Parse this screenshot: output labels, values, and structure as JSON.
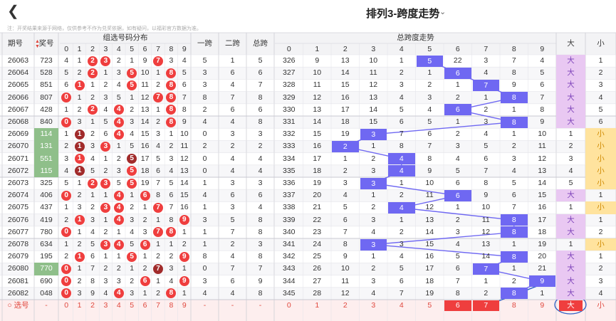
{
  "page": {
    "back_icon": "chevron-left",
    "title": "排列3-跨度走势",
    "dropdown_icon": "chevron-down",
    "notice": "注：开奖结果来源于网络，仅供参考不作为兑奖依据，如有疑问，以福彩官方数据为准。"
  },
  "header": {
    "issue": "期号",
    "prize": "奖号",
    "group_title": "组选号码分布",
    "digits": [
      "0",
      "1",
      "2",
      "3",
      "4",
      "5",
      "6",
      "7",
      "8",
      "9"
    ],
    "span1": "一跨",
    "span2": "二跨",
    "total_span": "总跨",
    "trend_title": "总跨度走势",
    "trend_cols": [
      "0",
      "1",
      "2",
      "3",
      "4",
      "5",
      "6",
      "7",
      "8",
      "9"
    ],
    "big": "大",
    "small": "小"
  },
  "colors": {
    "red_ball": "#ef3e3e",
    "dark_ball": "#a12b2b",
    "line": "#6f68f2",
    "hit_big": "#e9c8f2",
    "hit_small": "#ffe39e",
    "pair_row": "#8fbf8a"
  },
  "rows": [
    {
      "issue": "26063",
      "prize": "723",
      "dist": [
        "4",
        "1",
        "2",
        "3",
        "2",
        "1",
        "9",
        "7",
        "3",
        "4"
      ],
      "dist_type": [
        "",
        "",
        "r",
        "r",
        "",
        "",
        "",
        "r",
        "",
        ""
      ],
      "span1": "5",
      "span2": "1",
      "total": "5",
      "trend": [
        "326",
        "9",
        "13",
        "10",
        "1",
        "5",
        "22",
        "3",
        "7",
        "4"
      ],
      "big": "大",
      "small": "1",
      "hit_side": "big",
      "pair": false
    },
    {
      "issue": "26064",
      "prize": "528",
      "dist": [
        "5",
        "2",
        "2",
        "1",
        "3",
        "5",
        "10",
        "1",
        "8",
        "5"
      ],
      "dist_type": [
        "",
        "",
        "r",
        "",
        "",
        "r",
        "",
        "",
        "r",
        ""
      ],
      "span1": "3",
      "span2": "6",
      "total": "6",
      "trend": [
        "327",
        "10",
        "14",
        "11",
        "2",
        "1",
        "6",
        "4",
        "8",
        "5"
      ],
      "big": "大",
      "small": "2",
      "hit_side": "big",
      "pair": false
    },
    {
      "issue": "26065",
      "prize": "851",
      "dist": [
        "6",
        "1",
        "1",
        "2",
        "4",
        "5",
        "11",
        "2",
        "8",
        "6"
      ],
      "dist_type": [
        "",
        "r",
        "",
        "",
        "",
        "r",
        "",
        "",
        "r",
        ""
      ],
      "span1": "3",
      "span2": "4",
      "total": "7",
      "trend": [
        "328",
        "11",
        "15",
        "12",
        "3",
        "2",
        "1",
        "7",
        "9",
        "6"
      ],
      "big": "大",
      "small": "3",
      "hit_side": "big",
      "pair": false
    },
    {
      "issue": "26066",
      "prize": "807",
      "dist": [
        "0",
        "1",
        "2",
        "3",
        "5",
        "1",
        "12",
        "7",
        "8",
        "7"
      ],
      "dist_type": [
        "r",
        "",
        "",
        "",
        "",
        "",
        "",
        "r",
        "r",
        ""
      ],
      "span1": "8",
      "span2": "7",
      "total": "8",
      "trend": [
        "329",
        "12",
        "16",
        "13",
        "4",
        "3",
        "2",
        "1",
        "8",
        "7"
      ],
      "big": "大",
      "small": "4",
      "hit_side": "big",
      "pair": false
    },
    {
      "issue": "26067",
      "prize": "428",
      "dist": [
        "1",
        "2",
        "2",
        "4",
        "4",
        "2",
        "13",
        "1",
        "8",
        "8"
      ],
      "dist_type": [
        "",
        "",
        "r",
        "",
        "r",
        "",
        "",
        "",
        "r",
        ""
      ],
      "span1": "2",
      "span2": "6",
      "total": "6",
      "trend": [
        "330",
        "13",
        "17",
        "14",
        "5",
        "4",
        "6",
        "2",
        "1",
        "8"
      ],
      "big": "大",
      "small": "5",
      "hit_side": "big",
      "pair": false
    },
    {
      "issue": "26068",
      "prize": "840",
      "dist": [
        "0",
        "3",
        "1",
        "5",
        "4",
        "3",
        "14",
        "2",
        "8",
        "9"
      ],
      "dist_type": [
        "r",
        "",
        "",
        "",
        "r",
        "",
        "",
        "",
        "r",
        ""
      ],
      "span1": "4",
      "span2": "4",
      "total": "8",
      "trend": [
        "331",
        "14",
        "18",
        "15",
        "6",
        "5",
        "1",
        "3",
        "8",
        "9"
      ],
      "big": "大",
      "small": "6",
      "hit_side": "big",
      "pair": false
    },
    {
      "issue": "26069",
      "prize": "114",
      "dist": [
        "1",
        "1",
        "2",
        "6",
        "4",
        "4",
        "15",
        "3",
        "1",
        "10"
      ],
      "dist_type": [
        "",
        "d",
        "",
        "",
        "r",
        "",
        "",
        "",
        "",
        ""
      ],
      "span1": "0",
      "span2": "3",
      "total": "3",
      "trend": [
        "332",
        "15",
        "19",
        "3",
        "7",
        "6",
        "2",
        "4",
        "1",
        "10"
      ],
      "big": "1",
      "small": "小",
      "hit_side": "small",
      "pair": true
    },
    {
      "issue": "26070",
      "prize": "131",
      "dist": [
        "2",
        "1",
        "3",
        "3",
        "1",
        "5",
        "16",
        "4",
        "2",
        "11"
      ],
      "dist_type": [
        "",
        "d",
        "",
        "r",
        "",
        "",
        "",
        "",
        "",
        ""
      ],
      "span1": "2",
      "span2": "2",
      "total": "2",
      "trend": [
        "333",
        "16",
        "2",
        "1",
        "8",
        "7",
        "3",
        "5",
        "2",
        "11"
      ],
      "big": "2",
      "small": "小",
      "hit_side": "small",
      "pair": true
    },
    {
      "issue": "26071",
      "prize": "551",
      "dist": [
        "3",
        "1",
        "4",
        "1",
        "2",
        "5",
        "17",
        "5",
        "3",
        "12"
      ],
      "dist_type": [
        "",
        "r",
        "",
        "",
        "",
        "d",
        "",
        "",
        "",
        ""
      ],
      "span1": "0",
      "span2": "4",
      "total": "4",
      "trend": [
        "334",
        "17",
        "1",
        "2",
        "4",
        "8",
        "4",
        "6",
        "3",
        "12"
      ],
      "big": "3",
      "small": "小",
      "hit_side": "small",
      "pair": true
    },
    {
      "issue": "26072",
      "prize": "115",
      "dist": [
        "4",
        "1",
        "5",
        "2",
        "3",
        "5",
        "18",
        "6",
        "4",
        "13"
      ],
      "dist_type": [
        "",
        "d",
        "",
        "",
        "",
        "r",
        "",
        "",
        "",
        ""
      ],
      "span1": "0",
      "span2": "4",
      "total": "4",
      "trend": [
        "335",
        "18",
        "2",
        "3",
        "4",
        "9",
        "5",
        "7",
        "4",
        "13"
      ],
      "big": "4",
      "small": "小",
      "hit_side": "small",
      "pair": true
    },
    {
      "issue": "26073",
      "prize": "325",
      "dist": [
        "5",
        "1",
        "2",
        "3",
        "5",
        "5",
        "19",
        "7",
        "5",
        "14"
      ],
      "dist_type": [
        "",
        "",
        "r",
        "r",
        "",
        "r",
        "",
        "",
        "",
        ""
      ],
      "span1": "1",
      "span2": "3",
      "total": "3",
      "trend": [
        "336",
        "19",
        "3",
        "3",
        "1",
        "10",
        "6",
        "8",
        "5",
        "14"
      ],
      "big": "5",
      "small": "小",
      "hit_side": "small",
      "pair": false
    },
    {
      "issue": "26074",
      "prize": "406",
      "dist": [
        "0",
        "2",
        "1",
        "1",
        "4",
        "1",
        "6",
        "8",
        "6",
        "15"
      ],
      "dist_type": [
        "r",
        "",
        "",
        "",
        "r",
        "",
        "r",
        "",
        "",
        ""
      ],
      "span1": "4",
      "span2": "6",
      "total": "6",
      "trend": [
        "337",
        "20",
        "4",
        "1",
        "2",
        "11",
        "6",
        "9",
        "6",
        "15"
      ],
      "big": "大",
      "small": "1",
      "hit_side": "big",
      "pair": false
    },
    {
      "issue": "26075",
      "prize": "437",
      "dist": [
        "1",
        "3",
        "2",
        "3",
        "4",
        "2",
        "1",
        "7",
        "7",
        "16"
      ],
      "dist_type": [
        "",
        "",
        "",
        "r",
        "r",
        "",
        "",
        "r",
        "",
        ""
      ],
      "span1": "1",
      "span2": "3",
      "total": "4",
      "trend": [
        "338",
        "21",
        "5",
        "2",
        "4",
        "12",
        "1",
        "10",
        "7",
        "16"
      ],
      "big": "1",
      "small": "小",
      "hit_side": "small",
      "pair": false
    },
    {
      "issue": "26076",
      "prize": "419",
      "dist": [
        "2",
        "1",
        "3",
        "1",
        "4",
        "3",
        "2",
        "1",
        "8",
        "9"
      ],
      "dist_type": [
        "",
        "r",
        "",
        "",
        "r",
        "",
        "",
        "",
        "",
        "r"
      ],
      "span1": "3",
      "span2": "5",
      "total": "8",
      "trend": [
        "339",
        "22",
        "6",
        "3",
        "1",
        "13",
        "2",
        "11",
        "8",
        "17"
      ],
      "big": "大",
      "small": "1",
      "hit_side": "big",
      "pair": false
    },
    {
      "issue": "26077",
      "prize": "780",
      "dist": [
        "0",
        "1",
        "4",
        "2",
        "1",
        "4",
        "3",
        "7",
        "8",
        "1"
      ],
      "dist_type": [
        "r",
        "",
        "",
        "",
        "",
        "",
        "",
        "r",
        "r",
        ""
      ],
      "span1": "1",
      "span2": "7",
      "total": "8",
      "trend": [
        "340",
        "23",
        "7",
        "4",
        "2",
        "14",
        "3",
        "12",
        "8",
        "18"
      ],
      "big": "大",
      "small": "2",
      "hit_side": "big",
      "pair": false
    },
    {
      "issue": "26078",
      "prize": "634",
      "dist": [
        "1",
        "2",
        "5",
        "3",
        "4",
        "5",
        "6",
        "1",
        "1",
        "2"
      ],
      "dist_type": [
        "",
        "",
        "",
        "r",
        "r",
        "",
        "r",
        "",
        "",
        ""
      ],
      "span1": "1",
      "span2": "2",
      "total": "3",
      "trend": [
        "341",
        "24",
        "8",
        "3",
        "3",
        "15",
        "4",
        "13",
        "1",
        "19"
      ],
      "big": "1",
      "small": "小",
      "hit_side": "small",
      "pair": false
    },
    {
      "issue": "26079",
      "prize": "195",
      "dist": [
        "2",
        "1",
        "6",
        "1",
        "1",
        "5",
        "1",
        "2",
        "2",
        "9"
      ],
      "dist_type": [
        "",
        "r",
        "",
        "",
        "",
        "r",
        "",
        "",
        "",
        "r"
      ],
      "span1": "8",
      "span2": "4",
      "total": "8",
      "trend": [
        "342",
        "25",
        "9",
        "1",
        "4",
        "16",
        "5",
        "14",
        "8",
        "20"
      ],
      "big": "大",
      "small": "1",
      "hit_side": "big",
      "pair": false
    },
    {
      "issue": "26080",
      "prize": "770",
      "dist": [
        "0",
        "1",
        "7",
        "2",
        "2",
        "1",
        "2",
        "7",
        "3",
        "1"
      ],
      "dist_type": [
        "r",
        "",
        "",
        "",
        "",
        "",
        "",
        "d",
        "",
        ""
      ],
      "span1": "0",
      "span2": "7",
      "total": "7",
      "trend": [
        "343",
        "26",
        "10",
        "2",
        "5",
        "17",
        "6",
        "7",
        "1",
        "21"
      ],
      "big": "大",
      "small": "2",
      "hit_side": "big",
      "pair": true
    },
    {
      "issue": "26081",
      "prize": "690",
      "dist": [
        "0",
        "2",
        "8",
        "3",
        "3",
        "2",
        "6",
        "1",
        "4",
        "9"
      ],
      "dist_type": [
        "r",
        "",
        "",
        "",
        "",
        "",
        "r",
        "",
        "",
        "r"
      ],
      "span1": "3",
      "span2": "6",
      "total": "9",
      "trend": [
        "344",
        "27",
        "11",
        "3",
        "6",
        "18",
        "7",
        "1",
        "2",
        "9"
      ],
      "big": "大",
      "small": "3",
      "hit_side": "big",
      "pair": false
    },
    {
      "issue": "26082",
      "prize": "048",
      "dist": [
        "0",
        "3",
        "9",
        "4",
        "4",
        "3",
        "1",
        "2",
        "8",
        "1"
      ],
      "dist_type": [
        "r",
        "",
        "",
        "",
        "r",
        "",
        "",
        "",
        "r",
        ""
      ],
      "span1": "4",
      "span2": "4",
      "total": "8",
      "trend": [
        "345",
        "28",
        "12",
        "4",
        "7",
        "19",
        "8",
        "2",
        "8",
        "1"
      ],
      "big": "大",
      "small": "4",
      "hit_side": "big",
      "pair": false
    }
  ],
  "select_row": {
    "label": "选号",
    "prize": "-",
    "digits": [
      "0",
      "1",
      "2",
      "3",
      "4",
      "5",
      "6",
      "7",
      "8",
      "9"
    ],
    "span1": "-",
    "span2": "-",
    "total": "-",
    "trend": [
      "0",
      "1",
      "2",
      "3",
      "4",
      "5",
      "6",
      "7",
      "8",
      "9"
    ],
    "picked": [
      "6",
      "7"
    ],
    "big": "大",
    "small": "小"
  }
}
